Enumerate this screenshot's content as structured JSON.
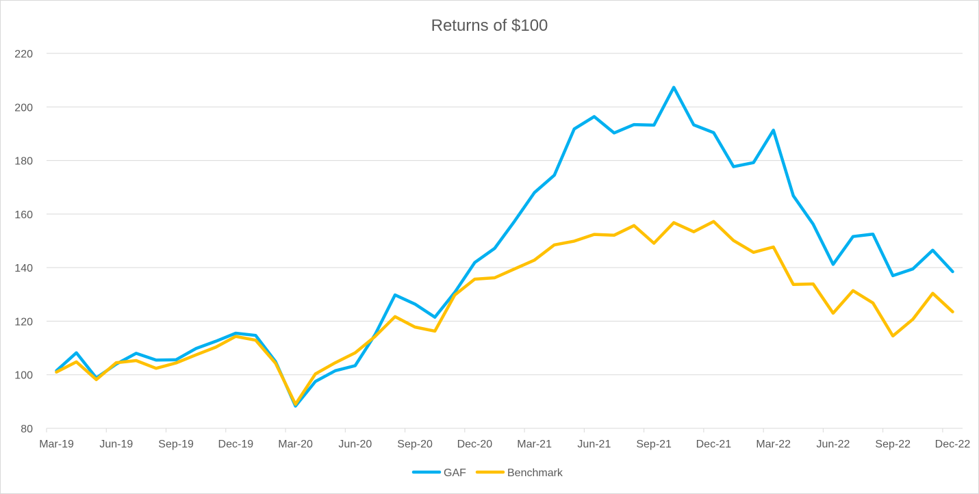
{
  "chart_data": {
    "type": "line",
    "title": "Returns of $100",
    "xlabel": "",
    "ylabel": "",
    "ylim": [
      80,
      220
    ],
    "yticks": [
      "80",
      "100",
      "120",
      "140",
      "160",
      "180",
      "200",
      "220"
    ],
    "xtick_labels": [
      "Mar-19",
      "Jun-19",
      "Sep-19",
      "Dec-19",
      "Mar-20",
      "Jun-20",
      "Sep-20",
      "Dec-20",
      "Mar-21",
      "Jun-21",
      "Sep-21",
      "Dec-21",
      "Mar-22",
      "Jun-22",
      "Sep-22",
      "Dec-22"
    ],
    "categories": [
      "Mar-19",
      "Apr-19",
      "May-19",
      "Jun-19",
      "Jul-19",
      "Aug-19",
      "Sep-19",
      "Oct-19",
      "Nov-19",
      "Dec-19",
      "Jan-20",
      "Feb-20",
      "Mar-20",
      "Apr-20",
      "May-20",
      "Jun-20",
      "Jul-20",
      "Aug-20",
      "Sep-20",
      "Oct-20",
      "Nov-20",
      "Dec-20",
      "Jan-21",
      "Feb-21",
      "Mar-21",
      "Apr-21",
      "May-21",
      "Jun-21",
      "Jul-21",
      "Aug-21",
      "Sep-21",
      "Oct-21",
      "Nov-21",
      "Dec-21",
      "Jan-22",
      "Feb-22",
      "Mar-22",
      "Apr-22",
      "May-22",
      "Jun-22",
      "Jul-22",
      "Aug-22",
      "Sep-22",
      "Oct-22",
      "Nov-22",
      "Dec-22"
    ],
    "series": [
      {
        "name": "GAF",
        "color": "#00b0f0",
        "values": [
          101.5,
          108.2,
          98.8,
          104.0,
          108.0,
          105.5,
          105.6,
          109.8,
          112.5,
          115.5,
          114.7,
          104.9,
          88.3,
          97.5,
          101.5,
          103.4,
          115.0,
          129.8,
          126.4,
          121.5,
          130.8,
          141.9,
          147.2,
          157.3,
          168.0,
          174.5,
          191.8,
          196.4,
          190.3,
          193.4,
          193.2,
          207.3,
          193.3,
          190.4,
          177.7,
          179.2,
          191.3,
          166.8,
          156.2,
          141.2,
          151.6,
          152.5,
          137.0,
          139.5,
          146.5,
          138.5
        ]
      },
      {
        "name": "Benchmark",
        "color": "#ffc000",
        "values": [
          101.0,
          104.8,
          98.2,
          104.5,
          105.3,
          102.4,
          104.4,
          107.4,
          110.3,
          114.3,
          112.9,
          104.3,
          89.0,
          100.3,
          104.5,
          108.2,
          114.3,
          121.7,
          117.8,
          116.3,
          129.8,
          135.7,
          136.2,
          139.5,
          142.8,
          148.5,
          149.9,
          152.4,
          152.1,
          155.7,
          149.1,
          156.8,
          153.4,
          157.2,
          150.1,
          145.7,
          147.7,
          133.7,
          133.9,
          123.0,
          131.4,
          126.8,
          114.5,
          120.7,
          130.4,
          123.5
        ]
      }
    ],
    "legend_position": "bottom",
    "grid": "horizontal"
  }
}
